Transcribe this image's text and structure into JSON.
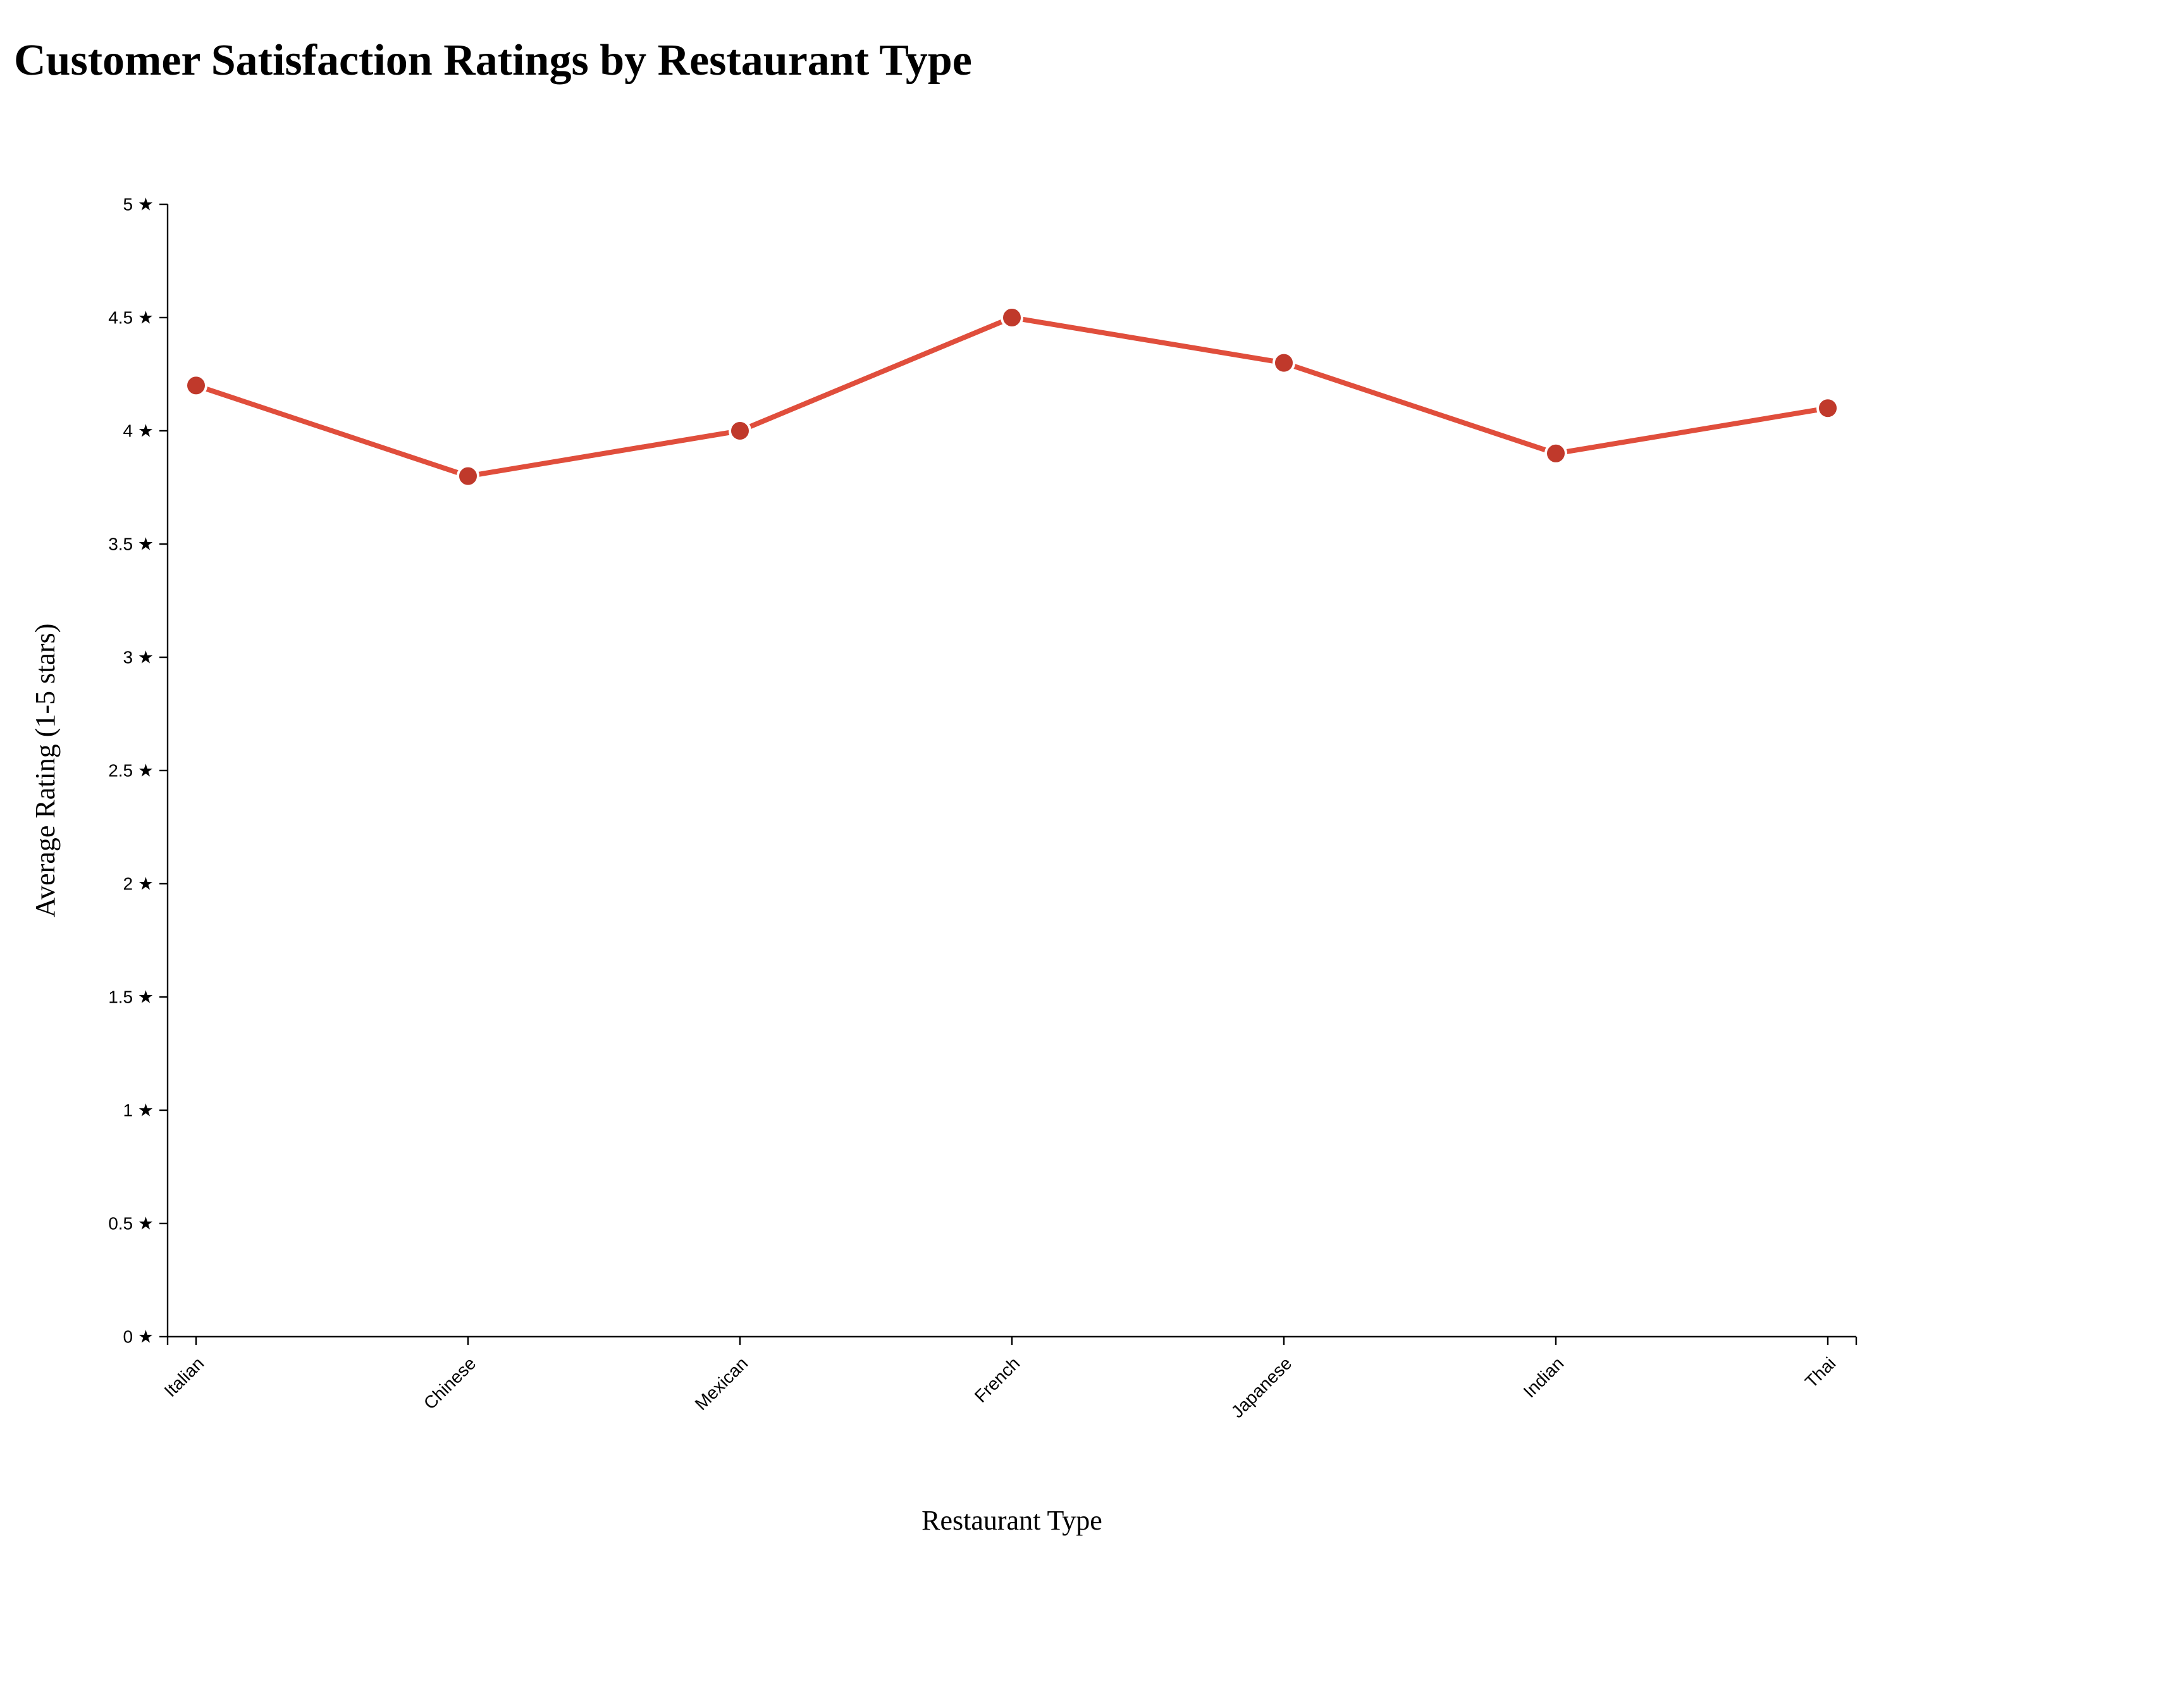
{
  "title": "Customer Satisfaction Ratings by Restaurant Type",
  "chart_data": {
    "type": "line",
    "title": "Customer Satisfaction Ratings by Restaurant Type",
    "xlabel": "Restaurant Type",
    "ylabel": "Average Rating (1-5 stars)",
    "categories": [
      "Italian",
      "Chinese",
      "Mexican",
      "French",
      "Japanese",
      "Indian",
      "Thai"
    ],
    "values": [
      4.2,
      3.8,
      4.0,
      4.5,
      4.3,
      3.9,
      4.1
    ],
    "ylim": [
      0,
      5
    ],
    "yticks": [
      0,
      0.5,
      1,
      1.5,
      2,
      2.5,
      3,
      3.5,
      4,
      4.5,
      5
    ],
    "ytick_suffix": " ★",
    "grid": false,
    "legend": "none",
    "line_color": "#e04e3c",
    "point_color": "#c0392b",
    "point_outline_color": "#ffffff"
  }
}
